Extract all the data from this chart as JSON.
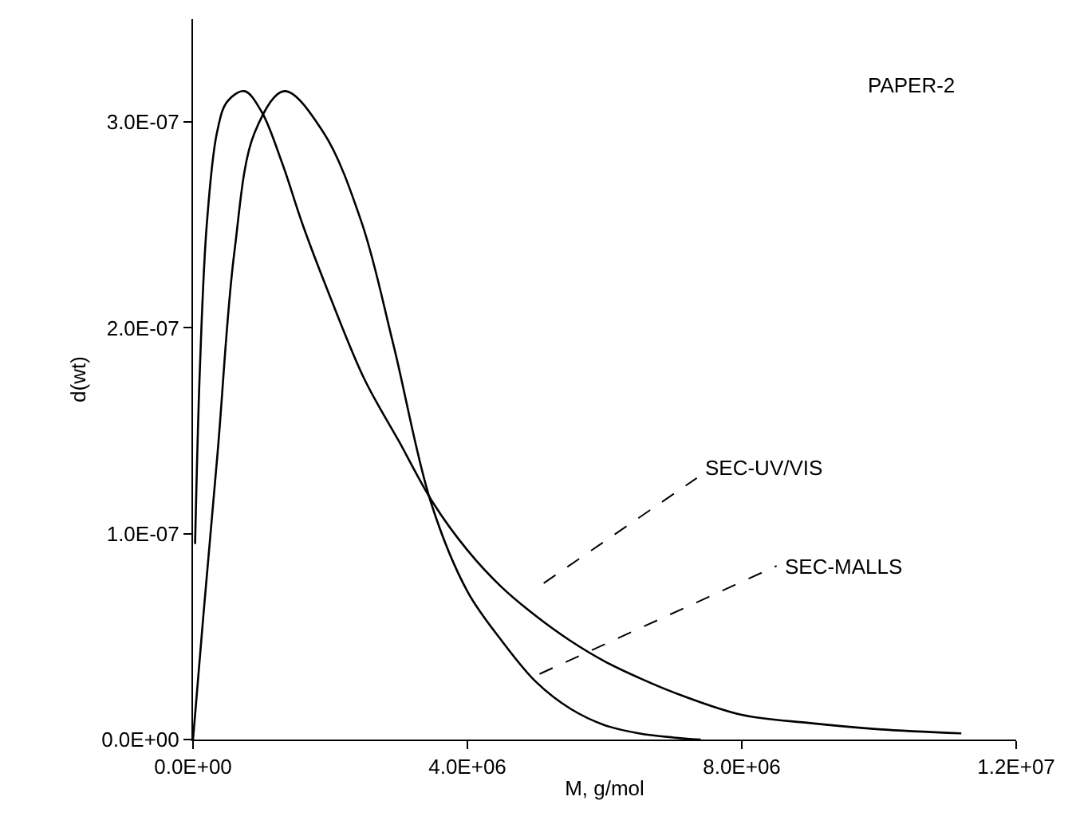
{
  "chart_data": {
    "type": "line",
    "xlabel": "M, g/mol",
    "ylabel": "d(wt)",
    "xlim": [
      0,
      12000000
    ],
    "ylim": [
      0,
      3.5e-07
    ],
    "xticks": [
      {
        "value": 0,
        "label": "0.0E+00"
      },
      {
        "value": 4000000,
        "label": "4.0E+06"
      },
      {
        "value": 8000000,
        "label": "8.0E+06"
      },
      {
        "value": 12000000,
        "label": "1.2E+07"
      }
    ],
    "yticks": [
      {
        "value": 0,
        "label": "0.0E+00"
      },
      {
        "value": 1e-07,
        "label": "1.0E-07"
      },
      {
        "value": 2e-07,
        "label": "2.0E-07"
      },
      {
        "value": 3e-07,
        "label": "3.0E-07"
      }
    ],
    "marker": "none",
    "line_style": "solid",
    "series": [
      {
        "color": "#000000",
        "x": [
          30000,
          100000,
          200000,
          350000,
          500000,
          750000,
          1000000,
          1300000,
          1600000,
          2000000,
          2500000,
          3000000,
          3500000,
          4000000,
          4500000,
          5000000,
          5500000,
          6000000,
          6500000,
          7000000,
          8000000,
          9000000,
          10000000,
          11200000
        ],
        "values": [
          9.5e-08,
          1.8e-07,
          2.5e-07,
          2.95e-07,
          3.1e-07,
          3.15e-07,
          3.05e-07,
          2.8e-07,
          2.5e-07,
          2.15e-07,
          1.75e-07,
          1.45e-07,
          1.15e-07,
          9.2e-08,
          7.4e-08,
          6e-08,
          4.8e-08,
          3.8e-08,
          3e-08,
          2.3e-08,
          1.2e-08,
          8e-09,
          5e-09,
          3e-09
        ]
      },
      {
        "color": "#000000",
        "x": [
          0,
          150000,
          360000,
          600000,
          900000,
          1330000,
          1900000,
          2460000,
          2920000,
          3470000,
          4000000,
          4500000,
          5000000,
          5500000,
          6000000,
          6500000,
          7000000,
          7400000
        ],
        "values": [
          0,
          6e-08,
          1.4e-07,
          2.36e-07,
          2.95e-07,
          3.15e-07,
          2.95e-07,
          2.51e-07,
          1.92e-07,
          1.15e-07,
          7.2e-08,
          4.8e-08,
          2.8e-08,
          1.5e-08,
          7e-09,
          3e-09,
          1e-09,
          0
        ]
      }
    ],
    "annotations": [
      "PAPER-2",
      "SEC-UV/VIS",
      "SEC-MALLS"
    ]
  }
}
